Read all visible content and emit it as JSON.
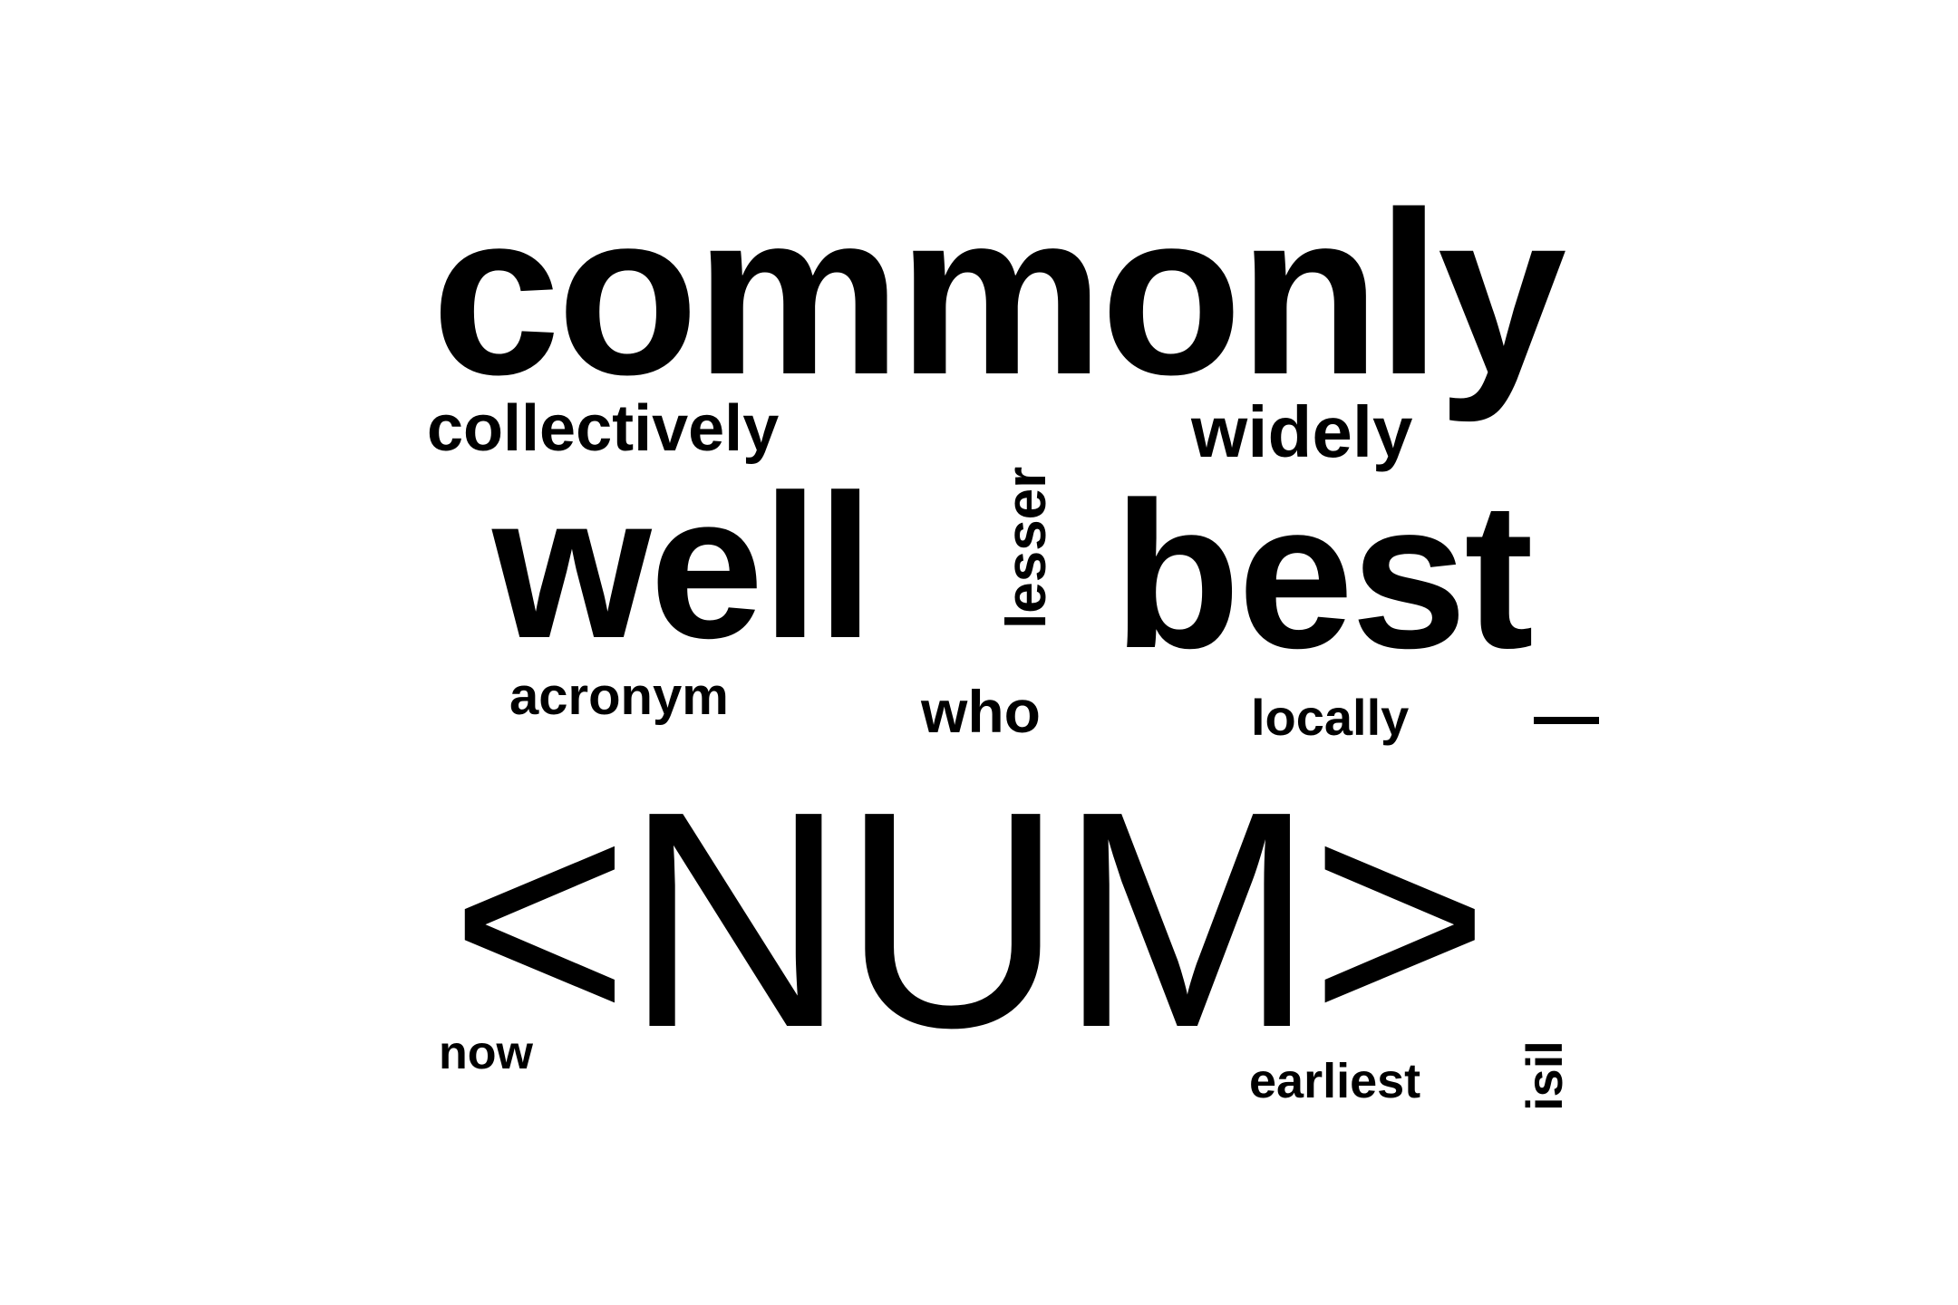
{
  "words": {
    "commonly": "commonly",
    "collectively": "collectively",
    "widely": "widely",
    "well": "well",
    "lesser": "lesser",
    "best": "best",
    "acronym": "acronym",
    "who": "who",
    "locally": "locally",
    "dash": "—",
    "num": "<NUM>",
    "now": "now",
    "earliest": "earliest",
    "isil": "isil"
  }
}
